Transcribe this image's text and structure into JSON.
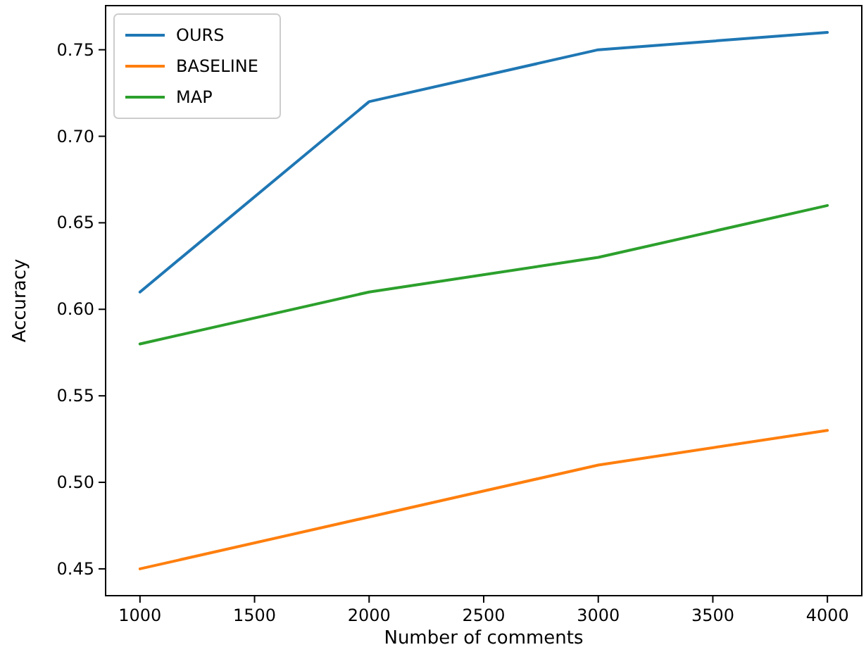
{
  "chart_data": {
    "type": "line",
    "xlabel": "Number of comments",
    "ylabel": "Accuracy",
    "x": [
      1000,
      2000,
      3000,
      4000
    ],
    "series": [
      {
        "name": "OURS",
        "color": "#1f77b4",
        "values": [
          0.61,
          0.72,
          0.75,
          0.76
        ]
      },
      {
        "name": "BASELINE",
        "color": "#ff7f0e",
        "values": [
          0.45,
          0.48,
          0.51,
          0.53
        ]
      },
      {
        "name": "MAP",
        "color": "#2ca02c",
        "values": [
          0.58,
          0.61,
          0.63,
          0.66
        ]
      }
    ],
    "xlim": [
      850,
      4150
    ],
    "xticks": [
      1000,
      1500,
      2000,
      2500,
      3000,
      3500,
      4000
    ],
    "ylim": [
      0.4345,
      0.7755
    ],
    "yticks": [
      {
        "value": 0.45,
        "label": "0.45"
      },
      {
        "value": 0.5,
        "label": "0.50"
      },
      {
        "value": 0.55,
        "label": "0.55"
      },
      {
        "value": 0.6,
        "label": "0.60"
      },
      {
        "value": 0.65,
        "label": "0.65"
      },
      {
        "value": 0.7,
        "label": "0.70"
      },
      {
        "value": 0.75,
        "label": "0.75"
      }
    ],
    "legend": "top left",
    "grid": false,
    "marker": "none",
    "line_style": "solid"
  }
}
